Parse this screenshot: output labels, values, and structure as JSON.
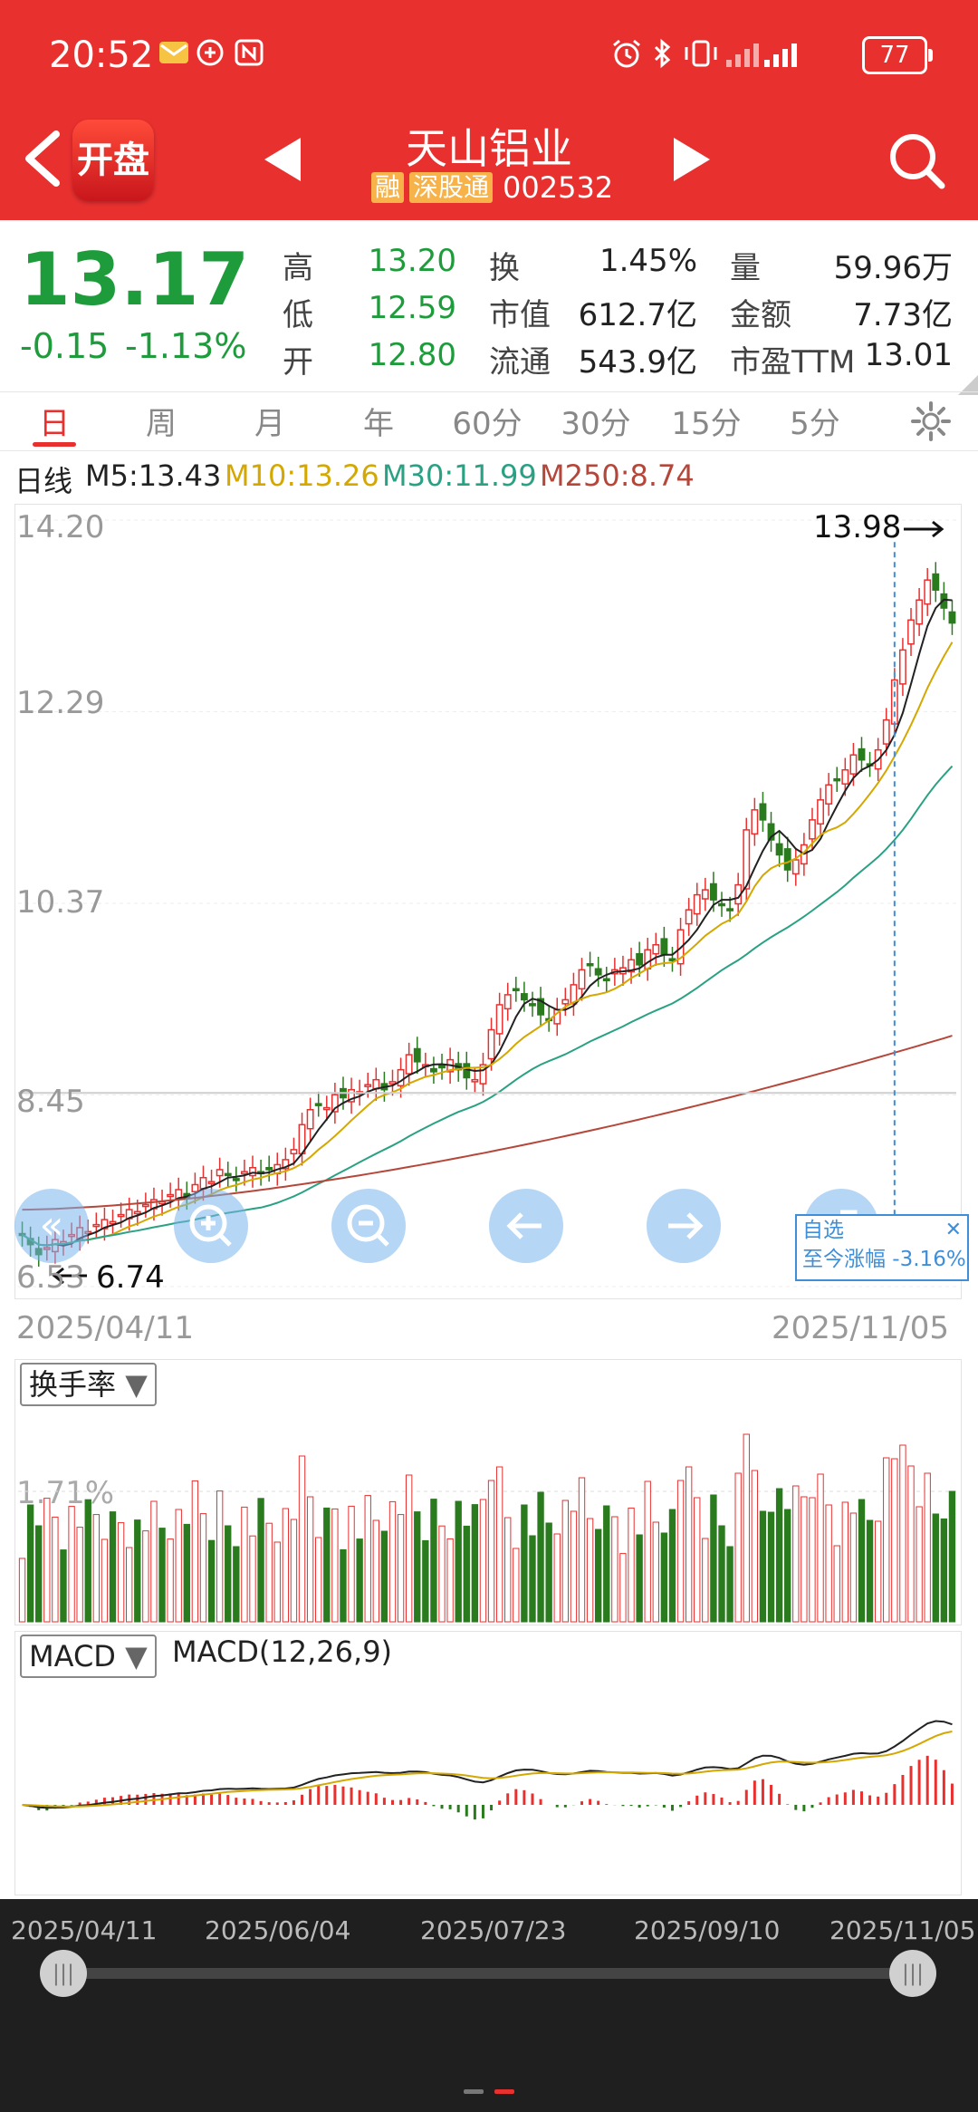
{
  "status_bar": {
    "time": "20:52",
    "battery": "77"
  },
  "header": {
    "app_icon_label": "开盘",
    "stock_name": "天山铝业",
    "tag_margin": "融",
    "tag_connect": "深股通",
    "stock_code": "002532"
  },
  "quote": {
    "price": "13.17",
    "change": "-0.15",
    "change_pct": "-1.13%",
    "fields": [
      {
        "label": "高",
        "value": "13.20"
      },
      {
        "label": "低",
        "value": "12.59"
      },
      {
        "label": "开",
        "value": "12.80"
      },
      {
        "label": "换",
        "value": "1.45%"
      },
      {
        "label": "市值",
        "value": "612.7亿"
      },
      {
        "label": "流通",
        "value": "543.9亿"
      },
      {
        "label": "量",
        "value": "59.96万"
      },
      {
        "label": "金额",
        "value": "7.73亿"
      },
      {
        "label": "市盈TTM",
        "value": "13.01"
      }
    ]
  },
  "tabs": [
    "日",
    "周",
    "月",
    "年",
    "60分",
    "30分",
    "15分",
    "5分"
  ],
  "active_tab": "日",
  "ma_legend": {
    "prefix": "日线",
    "m5": "M5:13.43",
    "m10": "M10:13.26",
    "m30": "M30:11.99",
    "m250": "M250:8.74",
    "colors": {
      "m5": "#222222",
      "m10": "#d4a800",
      "m30": "#2aa184",
      "m250": "#b5473a"
    }
  },
  "kline": {
    "y_ticks": [
      "14.20",
      "12.29",
      "10.37",
      "8.45",
      "6.53"
    ],
    "high_marker": "13.98",
    "low_marker": "6.74",
    "start_date": "2025/04/11",
    "end_date": "2025/11/05",
    "zixuan_label": "自选",
    "zixuan_change": "至今涨幅 -3.16%",
    "up_color": "#e8302f",
    "down_color": "#2a7a1e"
  },
  "turnover": {
    "selector": "换手率",
    "level_label": "1.71%"
  },
  "macd": {
    "selector": "MACD",
    "title": "MACD(12,26,9)"
  },
  "timeline": {
    "dates": [
      "2025/04/11",
      "2025/06/04",
      "2025/07/23",
      "2025/09/10",
      "2025/11/05"
    ]
  },
  "chart_data": {
    "type": "candlestick",
    "title": "",
    "x_range": [
      "2025/04/11",
      "2025/11/05"
    ],
    "y_range": [
      6.53,
      14.2
    ],
    "highest": 13.98,
    "lowest": 6.74,
    "closes": [
      7.05,
      6.95,
      6.85,
      6.92,
      7.0,
      6.98,
      7.05,
      7.12,
      7.08,
      7.15,
      7.2,
      7.18,
      7.25,
      7.3,
      7.28,
      7.35,
      7.4,
      7.38,
      7.45,
      7.5,
      7.42,
      7.55,
      7.62,
      7.58,
      7.7,
      7.65,
      7.6,
      7.68,
      7.72,
      7.66,
      7.7,
      7.75,
      7.8,
      7.9,
      8.15,
      8.3,
      8.35,
      8.32,
      8.45,
      8.42,
      8.5,
      8.48,
      8.55,
      8.6,
      8.5,
      8.58,
      8.7,
      8.85,
      8.78,
      8.75,
      8.68,
      8.72,
      8.8,
      8.7,
      8.62,
      8.6,
      8.75,
      9.1,
      9.35,
      9.45,
      9.5,
      9.4,
      9.35,
      9.25,
      9.2,
      9.3,
      9.4,
      9.55,
      9.7,
      9.75,
      9.65,
      9.6,
      9.7,
      9.72,
      9.8,
      9.75,
      9.9,
      9.95,
      9.85,
      9.8,
      10.1,
      10.3,
      10.45,
      10.5,
      10.4,
      10.35,
      10.3,
      10.55,
      11.1,
      11.3,
      11.2,
      11.0,
      10.85,
      10.7,
      10.8,
      10.95,
      11.2,
      11.4,
      11.55,
      11.6,
      11.7,
      11.85,
      11.8,
      11.75,
      11.9,
      12.2,
      12.6,
      12.9,
      13.2,
      13.4,
      13.6,
      13.5,
      13.32,
      13.17
    ],
    "ma5": 13.43,
    "ma10": 13.26,
    "ma30": 11.99,
    "ma250": 8.74,
    "turnover_reference": "1.71%",
    "macd_params": "MACD(12,26,9)"
  }
}
